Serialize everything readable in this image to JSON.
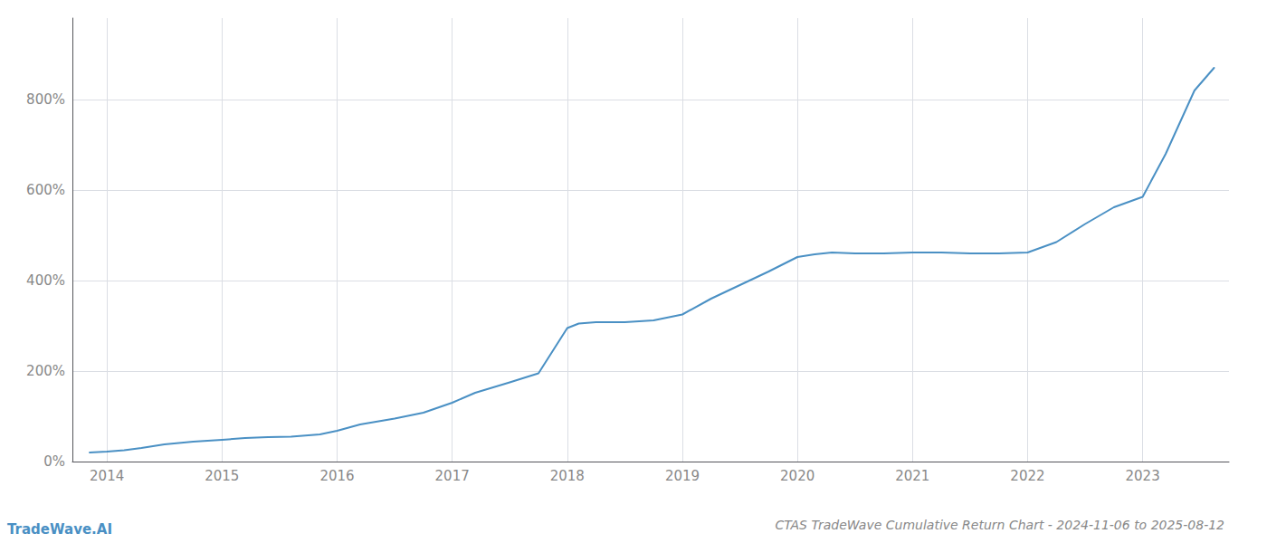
{
  "chart_data": {
    "type": "line",
    "title": "CTAS TradeWave Cumulative Return Chart - 2024-11-06 to 2025-08-12",
    "annotations": [
      "TradeWave.AI"
    ],
    "color": "#4a90c4",
    "grid": true,
    "x": [
      2013.85,
      2014.0,
      2014.15,
      2014.3,
      2014.5,
      2014.75,
      2015.0,
      2015.2,
      2015.4,
      2015.6,
      2015.85,
      2016.0,
      2016.2,
      2016.5,
      2016.75,
      2017.0,
      2017.2,
      2017.5,
      2017.75,
      2018.0,
      2018.1,
      2018.25,
      2018.5,
      2018.75,
      2019.0,
      2019.25,
      2019.5,
      2019.75,
      2020.0,
      2020.15,
      2020.3,
      2020.5,
      2020.75,
      2021.0,
      2021.25,
      2021.5,
      2021.75,
      2022.0,
      2022.25,
      2022.5,
      2022.75,
      2023.0,
      2023.2,
      2023.45,
      2023.62
    ],
    "values": [
      20,
      22,
      25,
      30,
      38,
      44,
      48,
      52,
      54,
      55,
      60,
      68,
      82,
      95,
      108,
      130,
      152,
      175,
      195,
      295,
      305,
      308,
      308,
      312,
      325,
      360,
      390,
      420,
      452,
      458,
      462,
      460,
      460,
      462,
      462,
      460,
      460,
      462,
      485,
      525,
      562,
      585,
      680,
      820,
      870
    ],
    "xlim": [
      2013.7,
      2023.75
    ],
    "xticks": [
      2014,
      2015,
      2016,
      2017,
      2018,
      2019,
      2020,
      2021,
      2022,
      2023
    ],
    "ylim": [
      0,
      980
    ],
    "yticks": [
      {
        "value": 0,
        "label": "0%"
      },
      {
        "value": 200,
        "label": "200%"
      },
      {
        "value": 400,
        "label": "400%"
      },
      {
        "value": 600,
        "label": "600%"
      },
      {
        "value": 800,
        "label": "800%"
      }
    ]
  }
}
